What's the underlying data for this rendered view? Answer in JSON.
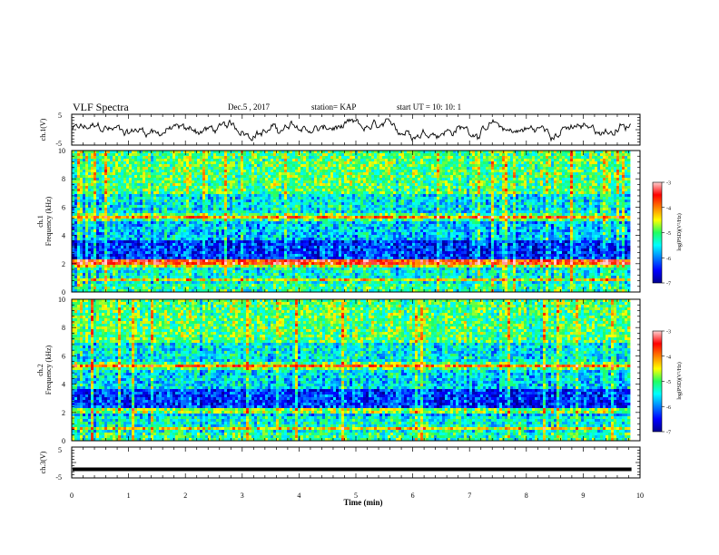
{
  "header": {
    "title": "VLF Spectra",
    "date": "Dec.5 , 2017",
    "station": "station= KAP",
    "start": "start  UT =   10: 10: 1"
  },
  "chart_data": [
    {
      "type": "line",
      "id": "ch1",
      "ylabel": "ch.1(V)",
      "ylim": [
        -5,
        5
      ],
      "yticks": [
        "5",
        "-5"
      ],
      "xlim": [
        0,
        10
      ]
    },
    {
      "type": "heatmap",
      "id": "spec1",
      "ylabel_line1": "ch.1",
      "ylabel_line2": "Frequency (kHz)",
      "xlim": [
        0,
        10
      ],
      "ylim": [
        0,
        10
      ],
      "yticks": [
        "0",
        "2",
        "4",
        "6",
        "8",
        "10"
      ],
      "data_end_min": 9.85,
      "colorbar": {
        "label": "log(PSD)(V²/Hz)",
        "range": [
          -7,
          -3
        ],
        "ticks": [
          "-3",
          "-4",
          "-5",
          "-6",
          "-7"
        ]
      }
    },
    {
      "type": "heatmap",
      "id": "spec2",
      "ylabel_line1": "ch.2",
      "ylabel_line2": "Frequency (kHz)",
      "xlim": [
        0,
        10
      ],
      "ylim": [
        0,
        10
      ],
      "yticks": [
        "0",
        "2",
        "4",
        "6",
        "8",
        "10"
      ],
      "data_end_min": 9.85,
      "colorbar": {
        "label": "log(PSD)(V²/Hz)",
        "range": [
          -7,
          -3
        ],
        "ticks": [
          "-3",
          "-4",
          "-5",
          "-6",
          "-7"
        ]
      }
    },
    {
      "type": "line",
      "id": "ch3",
      "ylabel": "ch.3(V)",
      "ylim": [
        -5,
        5
      ],
      "yticks": [
        "5",
        "-5"
      ],
      "level": -2.2,
      "xlim": [
        0,
        10
      ]
    }
  ],
  "xaxis": {
    "label": "Time (min)",
    "ticks": [
      "0",
      "1",
      "2",
      "3",
      "4",
      "5",
      "6",
      "7",
      "8",
      "9",
      "10"
    ]
  }
}
